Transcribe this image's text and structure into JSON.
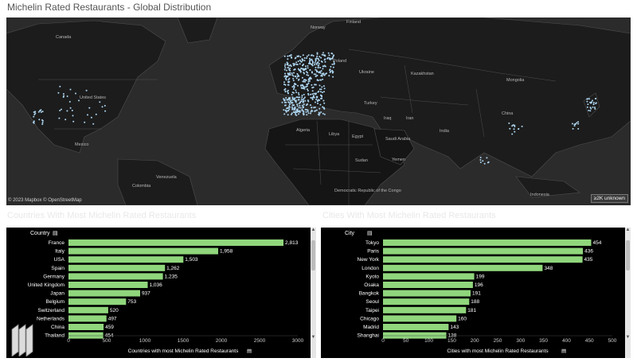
{
  "title": "Michelin Rated Restaurants - Global Distribution",
  "map": {
    "labels": [
      {
        "name": "Canada",
        "x": 62,
        "y": 22
      },
      {
        "name": "United States",
        "x": 92,
        "y": 98
      },
      {
        "name": "Mexico",
        "x": 86,
        "y": 157
      },
      {
        "name": "Venezuela",
        "x": 188,
        "y": 198
      },
      {
        "name": "Colombia",
        "x": 158,
        "y": 209
      },
      {
        "name": "Finland",
        "x": 427,
        "y": 3
      },
      {
        "name": "Norway",
        "x": 382,
        "y": 10
      },
      {
        "name": "Poland",
        "x": 410,
        "y": 52
      },
      {
        "name": "Ukraine",
        "x": 443,
        "y": 66
      },
      {
        "name": "Kazakhstan",
        "x": 508,
        "y": 68
      },
      {
        "name": "Mongolia",
        "x": 628,
        "y": 76
      },
      {
        "name": "Turkey",
        "x": 449,
        "y": 105
      },
      {
        "name": "Iraq",
        "x": 474,
        "y": 124
      },
      {
        "name": "Iran",
        "x": 502,
        "y": 124
      },
      {
        "name": "China",
        "x": 622,
        "y": 118
      },
      {
        "name": "Algeria",
        "x": 364,
        "y": 139
      },
      {
        "name": "Libya",
        "x": 405,
        "y": 144
      },
      {
        "name": "Egypt",
        "x": 434,
        "y": 147
      },
      {
        "name": "Saudi Arabia",
        "x": 476,
        "y": 150
      },
      {
        "name": "India",
        "x": 544,
        "y": 140
      },
      {
        "name": "Sudan",
        "x": 438,
        "y": 177
      },
      {
        "name": "Yemen",
        "x": 484,
        "y": 176
      },
      {
        "name": "Democratic Republic of the Congo",
        "x": 412,
        "y": 215
      },
      {
        "name": "Indonesia",
        "x": 658,
        "y": 220
      }
    ],
    "credit": "© 2023 Mapbox © OpenStreetMap",
    "unknown_badge": "≥2K unknown",
    "colors": {
      "background": "#2b2b2b",
      "land": "#1a1a1a",
      "border": "#555555",
      "points": "#aed6f1"
    }
  },
  "countries": {
    "section_title": "Countries With Most Michelin Rated Restaurants",
    "column_header": "Country",
    "rows": [
      {
        "label": "France",
        "value": 2813,
        "display": "2,813"
      },
      {
        "label": "Italy",
        "value": 1958,
        "display": "1,958"
      },
      {
        "label": "USA",
        "value": 1503,
        "display": "1,503"
      },
      {
        "label": "Spain",
        "value": 1262,
        "display": "1,262"
      },
      {
        "label": "Germany",
        "value": 1235,
        "display": "1,235"
      },
      {
        "label": "United Kingdom",
        "value": 1036,
        "display": "1,036"
      },
      {
        "label": "Japan",
        "value": 937,
        "display": "937"
      },
      {
        "label": "Belgium",
        "value": 753,
        "display": "753"
      },
      {
        "label": "Switzerland",
        "value": 520,
        "display": "520"
      },
      {
        "label": "Netherlands",
        "value": 497,
        "display": "497"
      },
      {
        "label": "China",
        "value": 459,
        "display": "459"
      },
      {
        "label": "Thailand",
        "value": 454,
        "display": "454"
      }
    ],
    "axis_ticks": [
      0,
      500,
      1000,
      1500,
      2000,
      2500,
      3000
    ],
    "axis_max": 3000,
    "axis_title": "Countries with most Michelin Rated Restaurants"
  },
  "cities": {
    "section_title": "Cities With Most Michelin Rated Restaurants",
    "column_header": "City",
    "rows": [
      {
        "label": "Tokyo",
        "value": 454,
        "display": "454"
      },
      {
        "label": "Paris",
        "value": 436,
        "display": "436"
      },
      {
        "label": "New York",
        "value": 435,
        "display": "435"
      },
      {
        "label": "London",
        "value": 348,
        "display": "348"
      },
      {
        "label": "Kyoto",
        "value": 199,
        "display": "199"
      },
      {
        "label": "Osaka",
        "value": 196,
        "display": "196"
      },
      {
        "label": "Bangkok",
        "value": 191,
        "display": "191"
      },
      {
        "label": "Seoul",
        "value": 188,
        "display": "188"
      },
      {
        "label": "Taipei",
        "value": 181,
        "display": "181"
      },
      {
        "label": "Chicago",
        "value": 160,
        "display": "160"
      },
      {
        "label": "Madrid",
        "value": 143,
        "display": "143"
      },
      {
        "label": "Shanghai",
        "value": 138,
        "display": "138"
      }
    ],
    "axis_ticks": [
      0,
      50,
      100,
      150,
      200,
      250,
      300,
      350,
      400,
      450,
      500
    ],
    "axis_max": 500,
    "axis_title": "Cities with most Michelin Rated Restaurants"
  },
  "chart_data": [
    {
      "type": "bar",
      "orientation": "horizontal",
      "title": "Countries With Most Michelin Rated Restaurants",
      "categories": [
        "France",
        "Italy",
        "USA",
        "Spain",
        "Germany",
        "United Kingdom",
        "Japan",
        "Belgium",
        "Switzerland",
        "Netherlands",
        "China",
        "Thailand"
      ],
      "values": [
        2813,
        1958,
        1503,
        1262,
        1235,
        1036,
        937,
        753,
        520,
        497,
        459,
        454
      ],
      "xlabel": "Countries with most Michelin Rated Restaurants",
      "ylabel": "Country",
      "xlim": [
        0,
        3000
      ],
      "color": "#90d67c"
    },
    {
      "type": "bar",
      "orientation": "horizontal",
      "title": "Cities With Most Michelin Rated Restaurants",
      "categories": [
        "Tokyo",
        "Paris",
        "New York",
        "London",
        "Kyoto",
        "Osaka",
        "Bangkok",
        "Seoul",
        "Taipei",
        "Chicago",
        "Madrid",
        "Shanghai"
      ],
      "values": [
        454,
        436,
        435,
        348,
        199,
        196,
        191,
        188,
        181,
        160,
        143,
        138
      ],
      "xlabel": "Cities with most Michelin Rated Restaurants",
      "ylabel": "City",
      "xlim": [
        0,
        500
      ],
      "color": "#90d67c"
    }
  ],
  "colors": {
    "bar": "#90d67c",
    "panel_bg": "#000000",
    "text": "#ffffff",
    "axis_text": "#cccccc"
  }
}
